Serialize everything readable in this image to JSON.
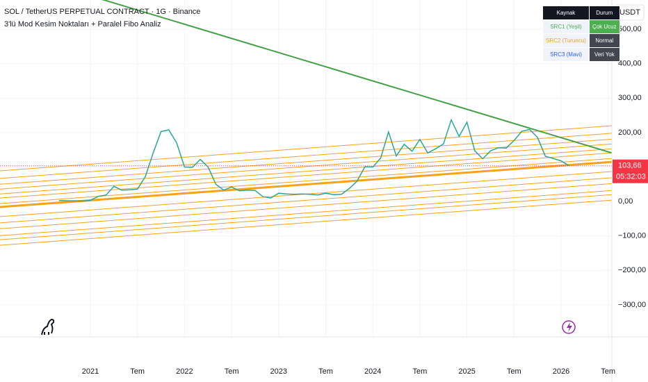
{
  "chart_data": {
    "type": "line",
    "title": "SOL / TetherUS PERPETUAL CONTRACT · 1G · Binance",
    "subtitle": "3'lü Mod Kesim Noktaları + Paralel Fibo Analiz",
    "currency": "USDT",
    "categories": [
      null,
      null,
      null,
      null,
      "2021",
      null,
      null,
      null,
      null,
      null,
      "Tem",
      null,
      null,
      null,
      null,
      null,
      "2022",
      null,
      null,
      null,
      null,
      null,
      "Tem",
      null,
      null,
      null,
      null,
      null,
      "2023",
      null,
      null,
      null,
      null,
      null,
      "Tem",
      null,
      null,
      null,
      null,
      null,
      "2024",
      null,
      null,
      null,
      null,
      null,
      "Tem",
      null,
      null,
      null,
      null,
      null,
      "2025",
      null,
      null,
      null,
      null,
      null,
      "Tem",
      null,
      null,
      null,
      null,
      null,
      "2026",
      null,
      null,
      null,
      null,
      null,
      "Tem"
    ],
    "series": [
      {
        "name": "SOL",
        "color": "#26a69a",
        "values": [
          3,
          2,
          2,
          1.5,
          3.5,
          15,
          19,
          44,
          33,
          34,
          36,
          72,
          141,
          203,
          208,
          170,
          100,
          99,
          122,
          100,
          50,
          33,
          42,
          31,
          33,
          32,
          14,
          10,
          24,
          22,
          21,
          22,
          21,
          19,
          24,
          20,
          21,
          38,
          59,
          101,
          100,
          126,
          202,
          132,
          166,
          146,
          180,
          141,
          153,
          167,
          237,
          189,
          230,
          147,
          124,
          147,
          156,
          155,
          177,
          204,
          209,
          186,
          131,
          125,
          118,
          104,
          null,
          null,
          null,
          null,
          null
        ]
      }
    ],
    "ylim": [
      -393,
      585
    ],
    "yticks": [
      {
        "value": 500,
        "label": "500,00"
      },
      {
        "value": 400,
        "label": "400,00"
      },
      {
        "value": 300,
        "label": "300,00"
      },
      {
        "value": 200,
        "label": "200,00"
      },
      {
        "value": 100,
        "label": "100,00"
      },
      {
        "value": 0,
        "label": "0,00"
      },
      {
        "value": -100,
        "label": "−100,00"
      },
      {
        "value": -200,
        "label": "−200,00"
      },
      {
        "value": -300,
        "label": "−300,00"
      }
    ],
    "grid": true,
    "last_price": {
      "value": 103.66,
      "label": "103,66"
    },
    "countdown": "05:32:03",
    "price_label_color": "#f23645",
    "trend_line": {
      "start": 676,
      "end": 141,
      "color": "#43a047"
    },
    "channel_line": {
      "start": -16,
      "end": 115
    },
    "fib_color": "#f7a21b",
    "fib_lines": [
      {
        "start": 89,
        "end": 220
      },
      {
        "start": 67,
        "end": 198
      },
      {
        "start": 50,
        "end": 181
      },
      {
        "start": 36,
        "end": 167
      },
      {
        "start": 22,
        "end": 153
      },
      {
        "start": 10,
        "end": 141
      },
      {
        "start": -6,
        "end": 125
      },
      {
        "start": -44,
        "end": 87
      },
      {
        "start": -62,
        "end": 69
      },
      {
        "start": -79,
        "end": 52
      },
      {
        "start": -99,
        "end": 32
      },
      {
        "start": -111,
        "end": 20
      },
      {
        "start": -127,
        "end": 4
      }
    ]
  },
  "table": {
    "header": [
      "Kaynak",
      "Durum"
    ],
    "rows": [
      [
        "SRC1 (Yeşil)",
        "Çok Ucuz"
      ],
      [
        "SRC2 (Turuncu)",
        "Normal"
      ],
      [
        "SRC3 (Mavi)",
        "Veri Yok"
      ]
    ]
  }
}
